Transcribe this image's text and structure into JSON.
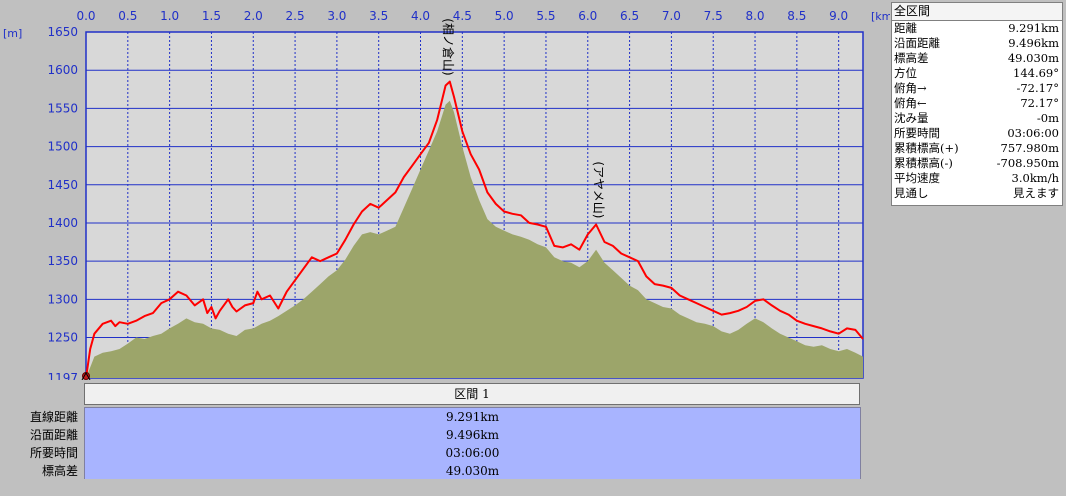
{
  "chart_data": {
    "type": "area",
    "x_unit": "[km]",
    "y_unit": "[m]",
    "xlim": [
      0,
      9.291
    ],
    "ylim": [
      1197,
      1650
    ],
    "x_ticks": [
      "0.0",
      "0.5",
      "1.0",
      "1.5",
      "2.0",
      "2.5",
      "3.0",
      "3.5",
      "4.0",
      "4.5",
      "5.0",
      "5.5",
      "6.0",
      "6.5",
      "7.0",
      "7.5",
      "8.0",
      "8.5",
      "9.0"
    ],
    "y_ticks": [
      "1197",
      "1250",
      "1300",
      "1350",
      "1400",
      "1450",
      "1500",
      "1550",
      "1600",
      "1650"
    ],
    "grid": true,
    "series": [
      {
        "line_color": "#ff0000",
        "x": [
          0.0,
          0.05,
          0.1,
          0.2,
          0.3,
          0.35,
          0.4,
          0.5,
          0.6,
          0.7,
          0.8,
          0.9,
          1.0,
          1.1,
          1.2,
          1.3,
          1.4,
          1.45,
          1.5,
          1.55,
          1.6,
          1.7,
          1.75,
          1.8,
          1.9,
          2.0,
          2.05,
          2.1,
          2.2,
          2.3,
          2.4,
          2.5,
          2.6,
          2.7,
          2.8,
          2.9,
          3.0,
          3.1,
          3.2,
          3.3,
          3.4,
          3.5,
          3.6,
          3.7,
          3.8,
          3.9,
          4.0,
          4.1,
          4.2,
          4.3,
          4.35,
          4.4,
          4.5,
          4.6,
          4.7,
          4.8,
          4.9,
          5.0,
          5.1,
          5.2,
          5.3,
          5.4,
          5.5,
          5.6,
          5.7,
          5.8,
          5.9,
          6.0,
          6.1,
          6.2,
          6.3,
          6.4,
          6.5,
          6.6,
          6.7,
          6.8,
          6.9,
          7.0,
          7.1,
          7.2,
          7.3,
          7.4,
          7.5,
          7.6,
          7.7,
          7.8,
          7.9,
          8.0,
          8.1,
          8.2,
          8.3,
          8.4,
          8.5,
          8.6,
          8.7,
          8.8,
          8.9,
          9.0,
          9.1,
          9.2,
          9.291
        ],
        "y": [
          1197,
          1235,
          1255,
          1268,
          1272,
          1265,
          1270,
          1268,
          1272,
          1278,
          1282,
          1295,
          1300,
          1310,
          1305,
          1292,
          1300,
          1282,
          1290,
          1275,
          1285,
          1300,
          1290,
          1284,
          1292,
          1295,
          1310,
          1300,
          1305,
          1288,
          1310,
          1325,
          1340,
          1355,
          1350,
          1355,
          1360,
          1378,
          1398,
          1415,
          1425,
          1420,
          1430,
          1440,
          1460,
          1475,
          1490,
          1505,
          1535,
          1580,
          1585,
          1565,
          1520,
          1490,
          1470,
          1440,
          1425,
          1415,
          1412,
          1410,
          1400,
          1398,
          1395,
          1370,
          1368,
          1372,
          1365,
          1385,
          1398,
          1375,
          1370,
          1360,
          1355,
          1350,
          1330,
          1320,
          1318,
          1315,
          1305,
          1300,
          1295,
          1290,
          1285,
          1280,
          1282,
          1285,
          1290,
          1298,
          1300,
          1292,
          1285,
          1280,
          1272,
          1268,
          1265,
          1262,
          1258,
          1255,
          1262,
          1260,
          1248
        ]
      },
      {
        "fill_color": "#9ca56a",
        "x": [
          0.0,
          0.1,
          0.2,
          0.3,
          0.4,
          0.5,
          0.6,
          0.7,
          0.8,
          0.9,
          1.0,
          1.1,
          1.2,
          1.3,
          1.4,
          1.5,
          1.6,
          1.7,
          1.8,
          1.9,
          2.0,
          2.1,
          2.2,
          2.3,
          2.4,
          2.5,
          2.6,
          2.7,
          2.8,
          2.9,
          3.0,
          3.1,
          3.2,
          3.3,
          3.4,
          3.5,
          3.6,
          3.7,
          3.8,
          3.9,
          4.0,
          4.1,
          4.2,
          4.3,
          4.35,
          4.4,
          4.5,
          4.6,
          4.7,
          4.8,
          4.9,
          5.0,
          5.1,
          5.2,
          5.3,
          5.4,
          5.5,
          5.6,
          5.7,
          5.8,
          5.9,
          6.0,
          6.1,
          6.2,
          6.3,
          6.4,
          6.5,
          6.6,
          6.7,
          6.8,
          6.9,
          7.0,
          7.1,
          7.2,
          7.3,
          7.4,
          7.5,
          7.6,
          7.7,
          7.8,
          7.9,
          8.0,
          8.1,
          8.2,
          8.3,
          8.4,
          8.5,
          8.6,
          8.7,
          8.8,
          8.9,
          9.0,
          9.1,
          9.2,
          9.291
        ],
        "y": [
          1197,
          1225,
          1230,
          1232,
          1235,
          1242,
          1250,
          1248,
          1252,
          1255,
          1262,
          1268,
          1275,
          1270,
          1268,
          1262,
          1260,
          1255,
          1252,
          1260,
          1262,
          1268,
          1272,
          1278,
          1285,
          1292,
          1300,
          1310,
          1320,
          1330,
          1338,
          1352,
          1370,
          1385,
          1388,
          1385,
          1390,
          1395,
          1420,
          1445,
          1470,
          1495,
          1520,
          1555,
          1560,
          1545,
          1500,
          1460,
          1430,
          1405,
          1395,
          1390,
          1385,
          1382,
          1378,
          1372,
          1368,
          1355,
          1350,
          1348,
          1342,
          1350,
          1365,
          1348,
          1338,
          1328,
          1318,
          1312,
          1300,
          1295,
          1290,
          1288,
          1280,
          1275,
          1270,
          1268,
          1265,
          1258,
          1255,
          1260,
          1268,
          1275,
          1270,
          1262,
          1255,
          1250,
          1245,
          1240,
          1238,
          1240,
          1235,
          1232,
          1235,
          1230,
          1225
        ]
      }
    ],
    "annotations": [
      {
        "text": "(相ノ倉山)",
        "x": 4.32,
        "y": 1585
      },
      {
        "text": "(アヤメ山)",
        "x": 6.12,
        "y": 1398
      }
    ]
  },
  "summary": {
    "title": "全区間",
    "rows": [
      {
        "label": "距離",
        "value": "9.291km"
      },
      {
        "label": "沿面距離",
        "value": "9.496km"
      },
      {
        "label": "標高差",
        "value": "49.030m"
      },
      {
        "label": "方位",
        "value": "144.69°"
      },
      {
        "label": "俯角→",
        "value": "-72.17°"
      },
      {
        "label": "俯角←",
        "value": "72.17°"
      },
      {
        "label": "沈み量",
        "value": "-0m"
      },
      {
        "label": "所要時間",
        "value": "03:06:00"
      },
      {
        "label": "累積標高(+)",
        "value": "757.980m"
      },
      {
        "label": "累積標高(-)",
        "value": "-708.950m"
      },
      {
        "label": "平均速度",
        "value": "3.0km/h"
      },
      {
        "label": "見通し",
        "value": "見えます"
      }
    ]
  },
  "segment": {
    "header": "区間 1",
    "rows": [
      {
        "label": "直線距離",
        "value": "9.291km"
      },
      {
        "label": "沿面距離",
        "value": "9.496km"
      },
      {
        "label": "所要時間",
        "value": "03:06:00"
      },
      {
        "label": "標高差",
        "value": "49.030m"
      }
    ]
  }
}
